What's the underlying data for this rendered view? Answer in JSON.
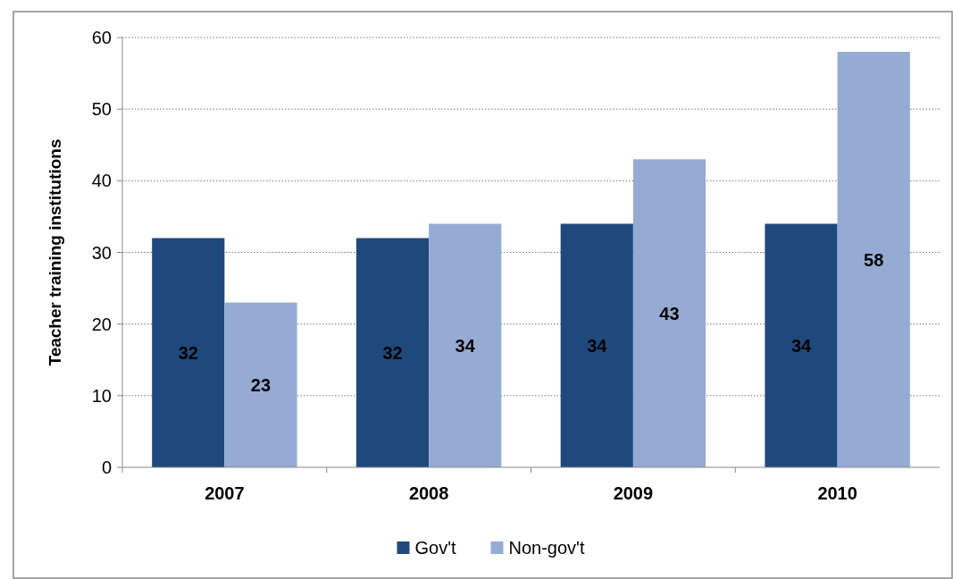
{
  "chart_data": {
    "type": "bar",
    "ylabel": "Teacher training institutions",
    "categories": [
      "2007",
      "2008",
      "2009",
      "2010"
    ],
    "series": [
      {
        "name": "Gov't",
        "color": "#1f497d",
        "values": [
          32,
          32,
          34,
          34
        ]
      },
      {
        "name": "Non-gov't",
        "color": "#95abd3",
        "values": [
          23,
          34,
          43,
          58
        ]
      }
    ],
    "ylim": [
      0,
      60
    ],
    "yticks": [
      0,
      10,
      20,
      30,
      40,
      50,
      60
    ],
    "grid": "y",
    "legend": "bottom",
    "data_labels": true
  }
}
